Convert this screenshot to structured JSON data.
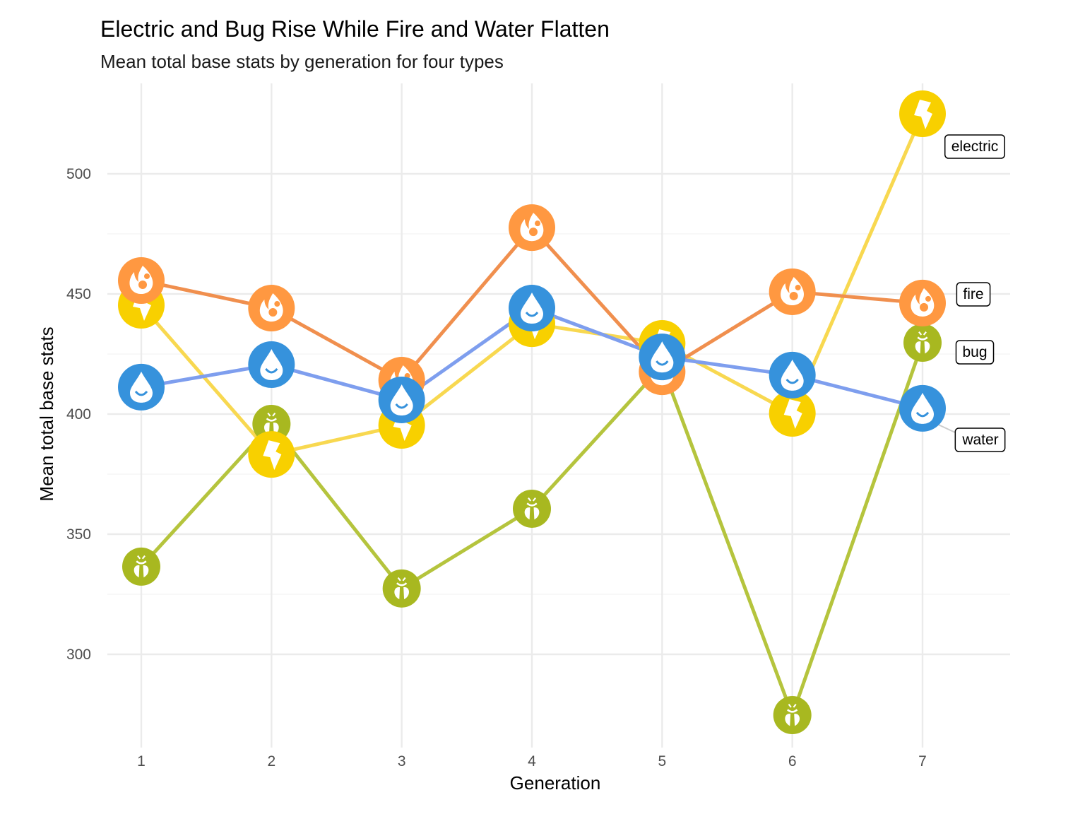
{
  "chart_data": {
    "type": "line",
    "title": "Electric and Bug Rise While Fire and Water Flatten",
    "subtitle": "Mean total base stats by generation for four types",
    "xlabel": "Generation",
    "ylabel": "Mean total base stats",
    "x": [
      1,
      2,
      3,
      4,
      5,
      6,
      7
    ],
    "x_ticks": [
      "1",
      "2",
      "3",
      "4",
      "5",
      "6",
      "7"
    ],
    "y_ticks": [
      "300",
      "350",
      "400",
      "450",
      "500"
    ],
    "y_tick_values": [
      300,
      350,
      400,
      450,
      500
    ],
    "xlim": [
      0.67,
      7.67
    ],
    "ylim": [
      263,
      537
    ],
    "grid": true,
    "legend": "direct-labels-right",
    "series": [
      {
        "name": "bug",
        "label": "bug",
        "color": "#A8B820",
        "line_color": "#B5C43D",
        "icon": "bug-icon",
        "values": [
          336.5,
          395.9,
          327.4,
          360.6,
          420.0,
          274.7,
          429.7
        ]
      },
      {
        "name": "electric",
        "label": "electric",
        "color": "#F8D000",
        "line_color": "#F8D850",
        "icon": "lightning-icon",
        "values": [
          445.3,
          383.2,
          395.3,
          437.6,
          429.4,
          400.3,
          525.0
        ]
      },
      {
        "name": "fire",
        "label": "fire",
        "color": "#FF9841",
        "line_color": "#F08F4E",
        "icon": "flame-icon",
        "values": [
          455.6,
          444.1,
          414.1,
          477.6,
          417.6,
          450.9,
          446.2
        ]
      },
      {
        "name": "water",
        "label": "water",
        "color": "#3692DC",
        "line_color": "#7E9EEE",
        "icon": "water-drop-icon",
        "values": [
          411.2,
          420.6,
          405.9,
          444.1,
          423.8,
          416.2,
          402.4
        ]
      }
    ]
  }
}
